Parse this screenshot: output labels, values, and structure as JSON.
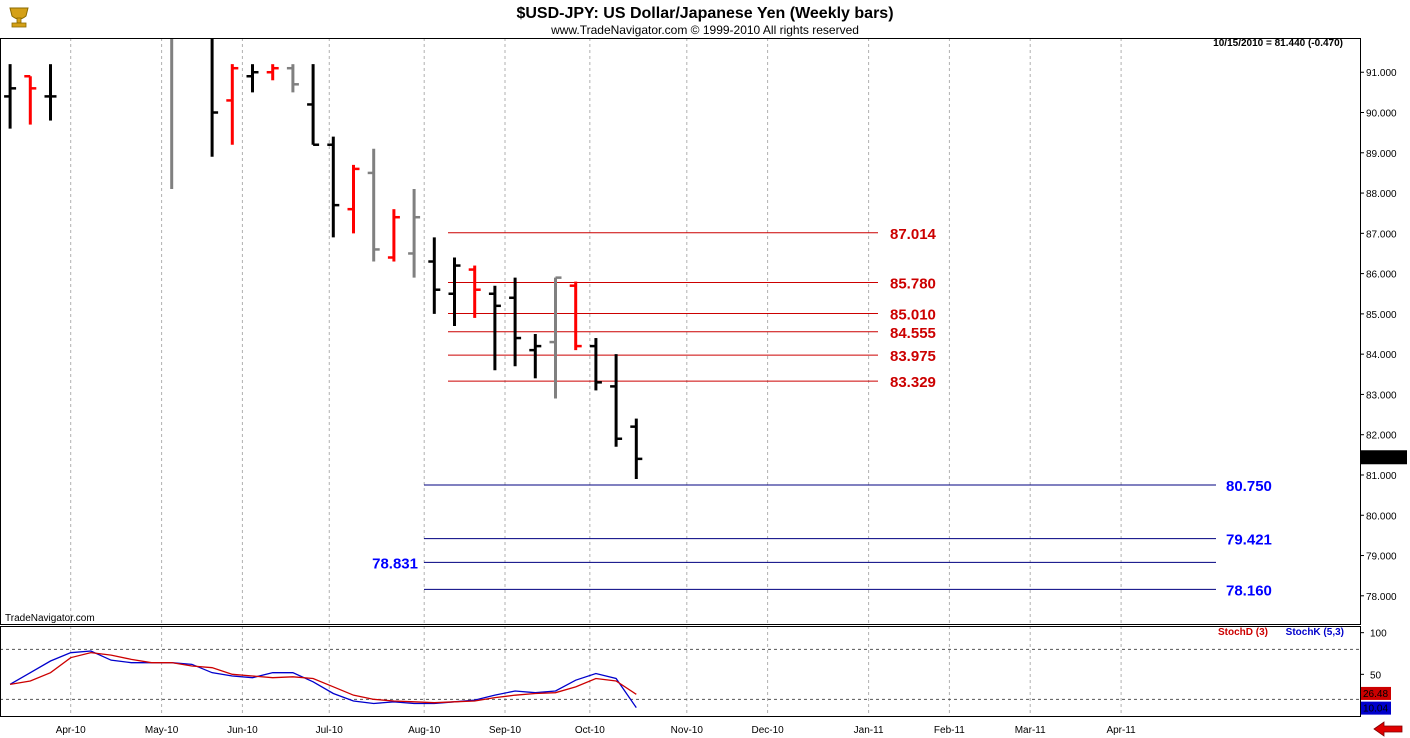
{
  "header": {
    "title": "$USD-JPY:  US Dollar/Japanese Yen  (Weekly bars)",
    "subtitle": "www.TradeNavigator.com © 1999-2010 All rights reserved",
    "last_quote": "10/15/2010 = 81.440 (-0.470)",
    "watermark": "TradeNavigator.com",
    "logo_icon": "trophy-icon"
  },
  "colors": {
    "up_bar": "#000000",
    "down_bar": "#ff0000",
    "neutral_bar": "#808080",
    "resistance": "#cc0000",
    "support": "#000080",
    "support_label": "#0000ff",
    "stoch_d": "#cc0000",
    "stoch_k": "#0000cc",
    "grid": "#b0b0b0"
  },
  "chart_data": [
    {
      "type": "ohlc",
      "ylim": [
        77.3,
        91.85
      ],
      "xlim": [
        0,
        58
      ],
      "y_ticks": [
        "91.000",
        "90.000",
        "89.000",
        "88.000",
        "87.000",
        "86.000",
        "85.000",
        "84.000",
        "83.000",
        "82.000",
        "81.000",
        "80.000",
        "79.000",
        "78.000"
      ],
      "current_price_label": "81.440",
      "x_tick_labels": [
        {
          "label": "Apr-10",
          "x": 3.5
        },
        {
          "label": "May-10",
          "x": 8
        },
        {
          "label": "Jun-10",
          "x": 12
        },
        {
          "label": "Jul-10",
          "x": 16.3
        },
        {
          "label": "Aug-10",
          "x": 21
        },
        {
          "label": "Sep-10",
          "x": 25
        },
        {
          "label": "Oct-10",
          "x": 29.2
        },
        {
          "label": "Nov-10",
          "x": 34
        },
        {
          "label": "Dec-10",
          "x": 38
        },
        {
          "label": "Jan-11",
          "x": 43
        },
        {
          "label": "Feb-11",
          "x": 47
        },
        {
          "label": "Mar-11",
          "x": 51
        },
        {
          "label": "Apr-11",
          "x": 55.5
        }
      ],
      "bars": [
        {
          "x": 0.5,
          "o": 90.4,
          "h": 91.2,
          "l": 89.6,
          "c": 90.6,
          "color": "up"
        },
        {
          "x": 1.5,
          "o": 90.9,
          "h": 90.9,
          "l": 89.7,
          "c": 90.6,
          "color": "down"
        },
        {
          "x": 2.5,
          "o": 90.4,
          "h": 91.2,
          "l": 89.8,
          "c": 90.4,
          "color": "up"
        },
        {
          "x": 8.5,
          "o": 92.4,
          "h": 92.4,
          "l": 88.1,
          "c": 92.0,
          "color": "neutral"
        },
        {
          "x": 10.5,
          "o": 92.1,
          "h": 92.1,
          "l": 88.9,
          "c": 90.0,
          "color": "up"
        },
        {
          "x": 11.5,
          "o": 90.3,
          "h": 91.2,
          "l": 89.2,
          "c": 91.1,
          "color": "down"
        },
        {
          "x": 12.5,
          "o": 90.9,
          "h": 91.2,
          "l": 90.5,
          "c": 91.0,
          "color": "up"
        },
        {
          "x": 13.5,
          "o": 91.0,
          "h": 91.2,
          "l": 90.8,
          "c": 91.1,
          "color": "down"
        },
        {
          "x": 14.5,
          "o": 91.1,
          "h": 91.2,
          "l": 90.5,
          "c": 90.7,
          "color": "neutral"
        },
        {
          "x": 15.5,
          "o": 90.2,
          "h": 91.2,
          "l": 89.2,
          "c": 89.2,
          "color": "up"
        },
        {
          "x": 16.5,
          "o": 89.2,
          "h": 89.4,
          "l": 86.9,
          "c": 87.7,
          "color": "up"
        },
        {
          "x": 17.5,
          "o": 87.6,
          "h": 88.7,
          "l": 87.0,
          "c": 88.6,
          "color": "down"
        },
        {
          "x": 18.5,
          "o": 88.5,
          "h": 89.1,
          "l": 86.3,
          "c": 86.6,
          "color": "neutral"
        },
        {
          "x": 19.5,
          "o": 86.4,
          "h": 87.6,
          "l": 86.3,
          "c": 87.4,
          "color": "down"
        },
        {
          "x": 20.5,
          "o": 86.5,
          "h": 88.1,
          "l": 85.9,
          "c": 87.4,
          "color": "neutral"
        },
        {
          "x": 21.5,
          "o": 86.3,
          "h": 86.9,
          "l": 85.0,
          "c": 85.6,
          "color": "up"
        },
        {
          "x": 22.5,
          "o": 85.5,
          "h": 86.4,
          "l": 84.7,
          "c": 86.2,
          "color": "up"
        },
        {
          "x": 23.5,
          "o": 86.1,
          "h": 86.2,
          "l": 84.9,
          "c": 85.6,
          "color": "down"
        },
        {
          "x": 24.5,
          "o": 85.5,
          "h": 85.7,
          "l": 83.6,
          "c": 85.2,
          "color": "up"
        },
        {
          "x": 25.5,
          "o": 85.4,
          "h": 85.9,
          "l": 83.7,
          "c": 84.4,
          "color": "up"
        },
        {
          "x": 26.5,
          "o": 84.1,
          "h": 84.5,
          "l": 83.4,
          "c": 84.2,
          "color": "up"
        },
        {
          "x": 27.5,
          "o": 84.3,
          "h": 85.9,
          "l": 82.9,
          "c": 85.9,
          "color": "neutral"
        },
        {
          "x": 28.5,
          "o": 85.7,
          "h": 85.8,
          "l": 84.1,
          "c": 84.2,
          "color": "down"
        },
        {
          "x": 29.5,
          "o": 84.2,
          "h": 84.4,
          "l": 83.1,
          "c": 83.3,
          "color": "up"
        },
        {
          "x": 30.5,
          "o": 83.2,
          "h": 84.0,
          "l": 81.7,
          "c": 81.9,
          "color": "up"
        },
        {
          "x": 31.5,
          "o": 82.2,
          "h": 82.4,
          "l": 80.9,
          "c": 81.4,
          "color": "up"
        }
      ],
      "resistance_levels": [
        "87.014",
        "85.780",
        "85.010",
        "84.555",
        "83.975",
        "83.329"
      ],
      "support_levels": [
        {
          "value": "80.750",
          "label_side": "right"
        },
        {
          "value": "79.421",
          "label_side": "right"
        },
        {
          "value": "78.831",
          "label_side": "left"
        },
        {
          "value": "78.160",
          "label_side": "right"
        }
      ]
    },
    {
      "type": "line",
      "ylim": [
        0,
        108
      ],
      "y_ticks": [
        "100",
        "50"
      ],
      "reference_lines": [
        80,
        20
      ],
      "legend": [
        "StochD (3)",
        "StochK (5,3)"
      ],
      "last_values": {
        "d": "26.48",
        "k": "10.04"
      },
      "x": [
        0.5,
        1.5,
        2.5,
        3.5,
        4.5,
        5.5,
        6.5,
        7.5,
        8.5,
        9.5,
        10.5,
        11.5,
        12.5,
        13.5,
        14.5,
        15.5,
        16.5,
        17.5,
        18.5,
        19.5,
        20.5,
        21.5,
        22.5,
        23.5,
        24.5,
        25.5,
        26.5,
        27.5,
        28.5,
        29.5,
        30.5,
        31.5
      ],
      "series": [
        {
          "name": "StochK (5,3)",
          "key": "k",
          "values": [
            38,
            52,
            66,
            76,
            78,
            67,
            64,
            64,
            64,
            62,
            52,
            48,
            46,
            52,
            52,
            41,
            27,
            18,
            15,
            17,
            15,
            15,
            17,
            19,
            25,
            30,
            28,
            30,
            43,
            51,
            45,
            10
          ]
        },
        {
          "name": "StochD (3)",
          "key": "d",
          "values": [
            38,
            42,
            52,
            70,
            76,
            73,
            68,
            64,
            64,
            60,
            58,
            50,
            48,
            46,
            47,
            45,
            35,
            25,
            20,
            18,
            17,
            16,
            17,
            18,
            22,
            25,
            27,
            28,
            35,
            45,
            42,
            26
          ]
        }
      ]
    }
  ]
}
